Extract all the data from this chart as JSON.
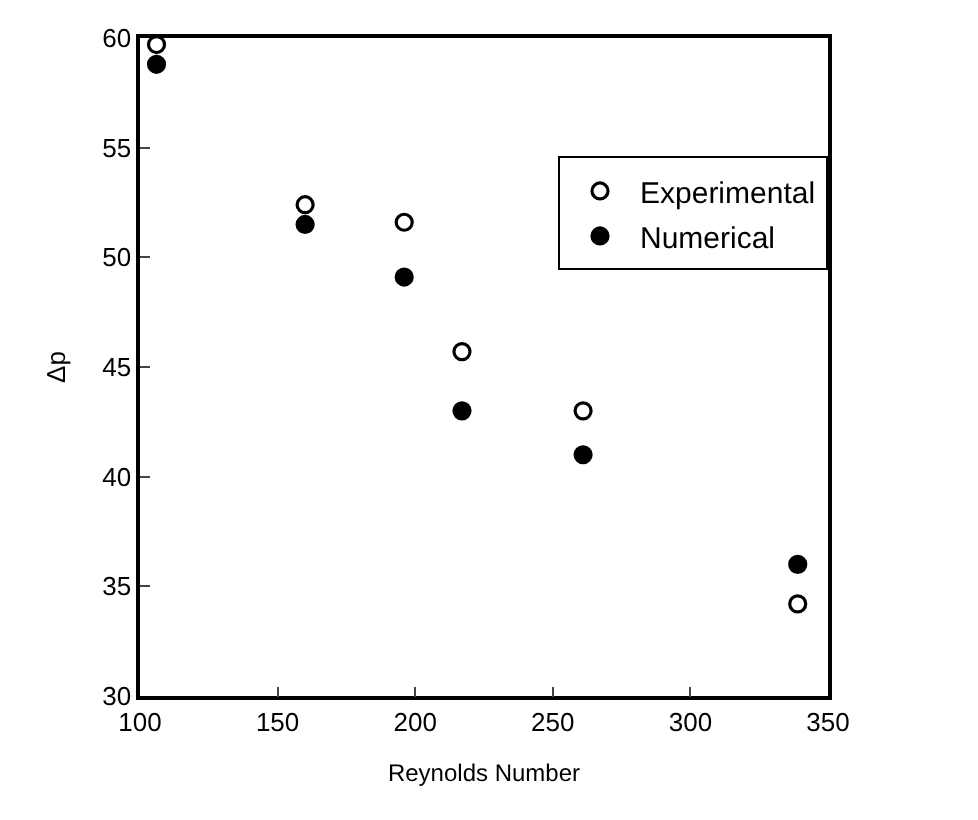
{
  "chart_data": {
    "type": "scatter",
    "xlabel": "Reynolds Number",
    "ylabel": "Δp",
    "xlim": [
      100,
      350
    ],
    "xticks": [
      100,
      150,
      200,
      250,
      300,
      350
    ],
    "ylim": [
      30,
      60
    ],
    "yticks": [
      30,
      35,
      40,
      45,
      50,
      55,
      60
    ],
    "legend": "top right",
    "series": [
      {
        "name": "Experimental",
        "color": "#000000",
        "marker": "circle-open",
        "x": [
          106,
          160,
          196,
          217,
          261,
          339
        ],
        "values": [
          59.7,
          52.4,
          51.6,
          45.7,
          43.0,
          34.2
        ]
      },
      {
        "name": "Numerical",
        "color": "#000000",
        "marker": "circle",
        "x": [
          106,
          160,
          196,
          217,
          261,
          339
        ],
        "values": [
          58.8,
          51.5,
          49.1,
          43.0,
          41.0,
          36.0
        ]
      }
    ]
  }
}
